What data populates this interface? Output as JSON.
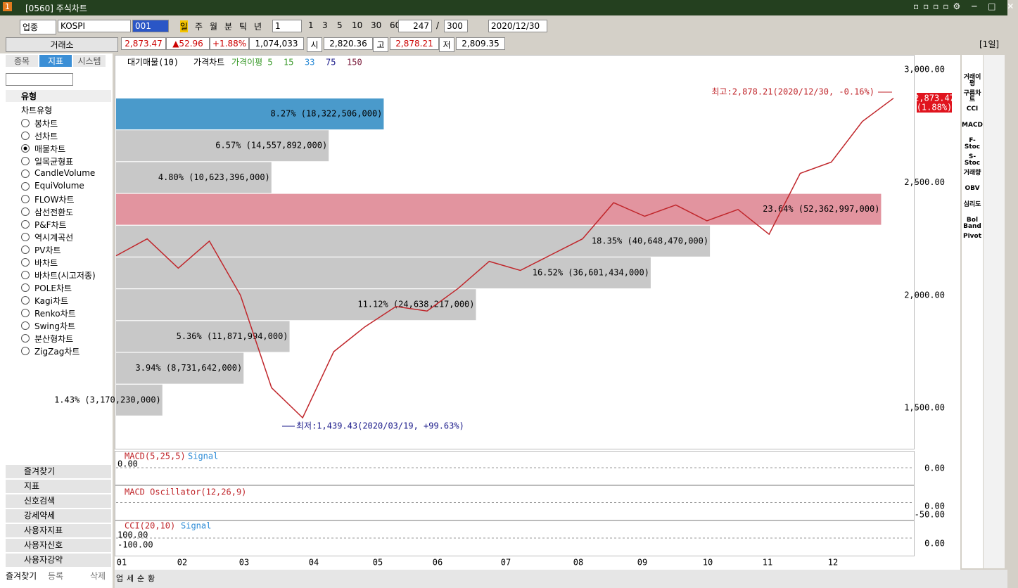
{
  "window": {
    "icon": "1",
    "title": "[0560] 주식차트"
  },
  "toolbar": {
    "market": "업종",
    "symbol": "KOSPI",
    "code": "001",
    "periods": [
      "일",
      "주",
      "월",
      "분",
      "틱",
      "년"
    ],
    "unit": "1",
    "intervals": [
      "1",
      "3",
      "5",
      "10",
      "30",
      "60"
    ],
    "count": "247",
    "separator": "/",
    "max": "300",
    "date": "2020/12/30"
  },
  "quote": {
    "exchange": "거래소",
    "price": "2,873.47",
    "change": "▲52.96",
    "rate": "+1.88%",
    "volume": "1,074,033",
    "open_label": "시",
    "open": "2,820.36",
    "high_label": "고",
    "high": "2,878.21",
    "low_label": "저",
    "low": "2,809.35",
    "period": "[1일]"
  },
  "sidebar": {
    "tabs": [
      "종목",
      "지표",
      "시스템"
    ],
    "group": "유형",
    "folder": "차트유형",
    "items": [
      "봉차트",
      "선차트",
      "매물차트",
      "일목균형표",
      "CandleVolume",
      "EquiVolume",
      "FLOW차트",
      "삼선전환도",
      "P&F차트",
      "역시계곡선",
      "PV차트",
      "바차트",
      "바차트(시고저종)",
      "POLE차트",
      "Kagi차트",
      "Renko차트",
      "Swing차트",
      "분산형차트",
      "ZigZag차트"
    ],
    "selected": "매물차트",
    "groups": [
      "즐겨찾기",
      "지표",
      "신호검색",
      "강세약세",
      "사용자지표",
      "사용자신호",
      "사용자강약"
    ],
    "buttons": [
      "즐겨찾기",
      "등록",
      "삭제"
    ]
  },
  "chart": {
    "type": "line",
    "legend": [
      "대기매물(10)",
      "가격차트",
      "가격이평 5",
      "15",
      "33",
      "75",
      "150"
    ],
    "ylim": [
      1326,
      3059
    ],
    "yticks": [
      {
        "value": 1500,
        "label": "1,500.00"
      },
      {
        "value": 2000,
        "label": "2,000.00"
      },
      {
        "value": 2500,
        "label": "2,500.00"
      },
      {
        "value": 3000,
        "label": "3,000.00"
      }
    ],
    "price": {
      "color": "#c0262b",
      "values": [
        2175,
        2250,
        2120,
        2240,
        2000,
        1590,
        1457,
        1750,
        1860,
        1950,
        1930,
        2030,
        2150,
        2110,
        2180,
        2250,
        2410,
        2350,
        2400,
        2330,
        2380,
        2270,
        2540,
        2590,
        2770,
        2873
      ]
    },
    "volume_profile": {
      "values": [
        8.27,
        6.57,
        4.8,
        23.64,
        18.35,
        16.52,
        11.12,
        5.36,
        3.94,
        1.43
      ],
      "value_labels": [
        "8.27% (18,322,506,000)",
        "6.57% (14,557,892,000)",
        "4.80% (10,623,396,000)",
        "23.64% (52,362,997,000)",
        "18.35% (40,648,470,000)",
        "16.52% (36,601,434,000)",
        "11.12% (24,638,217,000)",
        "5.36% (11,871,994,000)",
        "3.94% (8,731,642,000)",
        "1.43% (3,170,230,000)"
      ],
      "colors": [
        "#4a9acb",
        "#c8c8c8",
        "#c8c8c8",
        "#e2949f",
        "#c8c8c8",
        "#c8c8c8",
        "#c8c8c8",
        "#c8c8c8",
        "#c8c8c8",
        "#c8c8c8"
      ]
    },
    "high_note": "최고:2,878.21(2020/12/30, -0.16%)",
    "low_note": "최저:1,439.43(2020/03/19, +99.63%)",
    "price_tag": [
      "2,873.47",
      "(1.88%)"
    ],
    "months": [
      "01",
      "02",
      "03",
      "04",
      "05",
      "06",
      "07",
      "08",
      "09",
      "10",
      "11",
      "12"
    ]
  },
  "macd": {
    "legend": [
      "MACD(5,25,5)",
      "Signal"
    ],
    "left": "0.00",
    "right": "0.00"
  },
  "oscillator": {
    "legend": "MACD Oscillator(12,26,9)",
    "right": [
      "0.00",
      "-50.00"
    ]
  },
  "cci": {
    "legend": [
      "CCI(20,10)",
      "Signal"
    ],
    "left": [
      "100.00",
      "-100.00"
    ],
    "right": "0.00"
  },
  "tools": [
    "거래이평",
    "구름차트",
    "CCI",
    "MACD",
    "F-Stoc",
    "S-Stoc",
    "거래량",
    "OBV",
    "심리도",
    "Bol Band",
    "Pivot"
  ],
  "bottom_tabs": [
    "업",
    "세",
    "순",
    "황"
  ]
}
